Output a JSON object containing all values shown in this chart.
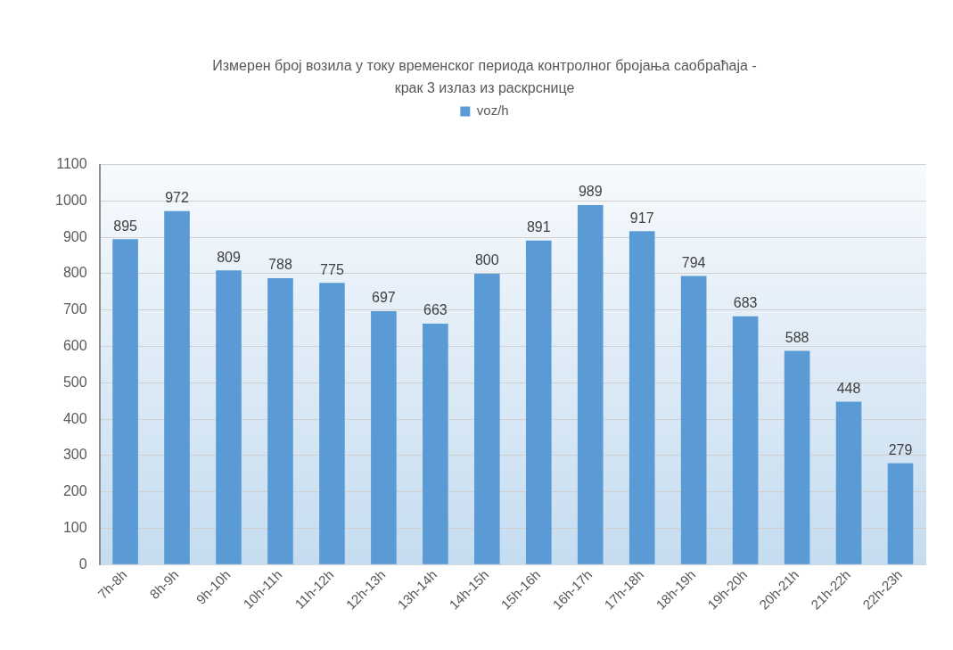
{
  "chart_data": {
    "type": "bar",
    "title": "Измерен број возила у току временског периода контролног бројања саобраћаја - крак 3 излаз из раскрснице",
    "categories": [
      "7h-8h",
      "8h-9h",
      "9h-10h",
      "10h-11h",
      "11h-12h",
      "12h-13h",
      "13h-14h",
      "14h-15h",
      "15h-16h",
      "16h-17h",
      "17h-18h",
      "18h-19h",
      "19h-20h",
      "20h-21h",
      "21h-22h",
      "22h-23h"
    ],
    "series": [
      {
        "name": "voz/h",
        "color": "#5b9bd5",
        "values": [
          895,
          972,
          809,
          788,
          775,
          697,
          663,
          800,
          891,
          989,
          917,
          794,
          683,
          588,
          448,
          279
        ]
      }
    ],
    "ylim": [
      0,
      1100
    ],
    "yticks": [
      0,
      100,
      200,
      300,
      400,
      500,
      600,
      700,
      800,
      900,
      1000,
      1100
    ],
    "grid": "y",
    "legend": "top",
    "data_labels": true
  }
}
